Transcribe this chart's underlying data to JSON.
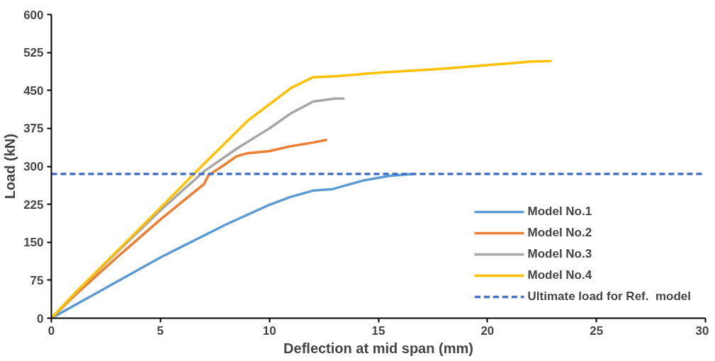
{
  "chart_data": {
    "type": "line",
    "xlabel": "Deflection at mid span (mm)",
    "ylabel": "Load (kN)",
    "xlim": [
      0,
      30
    ],
    "xticks": [
      0,
      5,
      10,
      15,
      20,
      25,
      30
    ],
    "ylim": [
      0,
      600
    ],
    "yticks": [
      0,
      75,
      150,
      225,
      300,
      375,
      450,
      525,
      600
    ],
    "grid": false,
    "legend": "bottom right",
    "line_style": "solid",
    "marker": "none",
    "series": [
      {
        "name": "Model No.1",
        "color": "#5b9bd5",
        "x": [
          0,
          2,
          5,
          8,
          10,
          11,
          12,
          12.9,
          14.3,
          15.5,
          16.6
        ],
        "values": [
          0,
          48,
          120,
          185,
          224,
          240,
          252,
          255,
          272,
          281,
          285
        ]
      },
      {
        "name": "Model No.2",
        "color": "#ed7d31",
        "x": [
          0,
          1,
          3,
          5,
          6,
          7,
          7.2,
          8,
          8.5,
          9,
          10,
          11,
          12,
          12.6
        ],
        "values": [
          0,
          42,
          120,
          195,
          230,
          265,
          282,
          305,
          320,
          326,
          330,
          340,
          347,
          352
        ]
      },
      {
        "name": "Model No.3",
        "color": "#a5a5a5",
        "x": [
          0,
          1,
          3,
          5,
          7,
          8.5,
          10,
          11,
          12,
          13,
          13.4
        ],
        "values": [
          0,
          45,
          130,
          213,
          290,
          335,
          375,
          405,
          428,
          434,
          434
        ]
      },
      {
        "name": "Model No.4",
        "color": "#ffc000",
        "x": [
          0,
          1,
          3,
          5,
          7,
          9,
          11,
          12,
          13,
          15,
          18,
          20,
          22,
          22.9
        ],
        "values": [
          0,
          46,
          132,
          218,
          305,
          390,
          455,
          476,
          478,
          485,
          493,
          500,
          507,
          508
        ]
      }
    ],
    "ref_lines": [
      {
        "axis": "y",
        "value": 285,
        "label": "Ultimate load for Ref.  model",
        "color": "#4472c4",
        "line_style": "dashed"
      }
    ]
  }
}
